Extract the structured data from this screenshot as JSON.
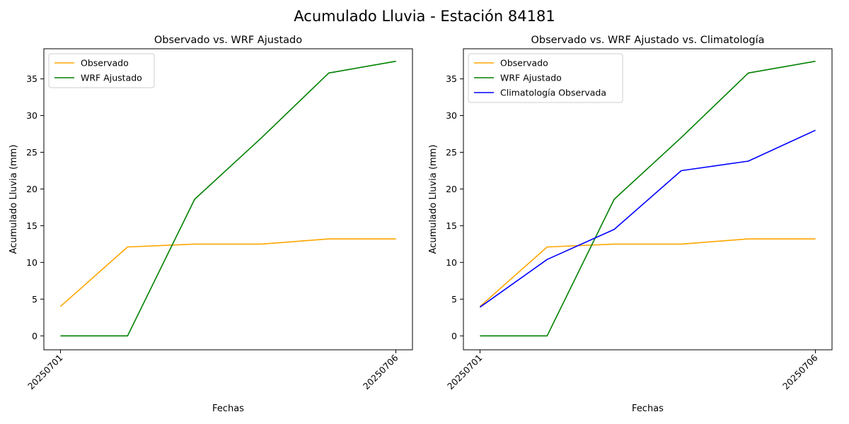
{
  "figure": {
    "suptitle": "Acumulado Lluvia - Estación 84181"
  },
  "colors": {
    "observado": "#ffa500",
    "wrf": "#008000",
    "clim": "#0000ff"
  },
  "chart_data": [
    {
      "type": "line",
      "title": "Observado vs. WRF Ajustado",
      "xlabel": "Fechas",
      "ylabel": "Acumulado Lluvia (mm)",
      "x": [
        "20250701",
        "20250702",
        "20250703",
        "20250704",
        "20250705",
        "20250706"
      ],
      "xtick_labels": [
        "20250701",
        "20250706"
      ],
      "ylim": [
        -1.9,
        39.1
      ],
      "yticks": [
        0,
        5,
        10,
        15,
        20,
        25,
        30,
        35
      ],
      "grid": false,
      "legend": "upper-left",
      "series": [
        {
          "name": "Observado",
          "color": "#ffa500",
          "values": [
            4.0,
            12.1,
            12.5,
            12.5,
            13.2,
            13.2
          ]
        },
        {
          "name": "WRF Ajustado",
          "color": "#008000",
          "values": [
            0.0,
            0.0,
            18.6,
            27.0,
            35.8,
            37.4
          ]
        }
      ]
    },
    {
      "type": "line",
      "title": "Observado vs. WRF Ajustado vs. Climatología",
      "xlabel": "Fechas",
      "ylabel": "Acumulado Lluvia (mm)",
      "x": [
        "20250701",
        "20250702",
        "20250703",
        "20250704",
        "20250705",
        "20250706"
      ],
      "xtick_labels": [
        "20250701",
        "20250706"
      ],
      "ylim": [
        -1.9,
        39.1
      ],
      "yticks": [
        0,
        5,
        10,
        15,
        20,
        25,
        30,
        35
      ],
      "grid": false,
      "legend": "upper-left",
      "series": [
        {
          "name": "Observado",
          "color": "#ffa500",
          "values": [
            4.0,
            12.1,
            12.5,
            12.5,
            13.2,
            13.2
          ]
        },
        {
          "name": "WRF Ajustado",
          "color": "#008000",
          "values": [
            0.0,
            0.0,
            18.6,
            27.0,
            35.8,
            37.4
          ]
        },
        {
          "name": "Climatología Observada",
          "color": "#0000ff",
          "values": [
            3.9,
            10.4,
            14.5,
            22.5,
            23.8,
            28.0
          ]
        }
      ]
    }
  ]
}
